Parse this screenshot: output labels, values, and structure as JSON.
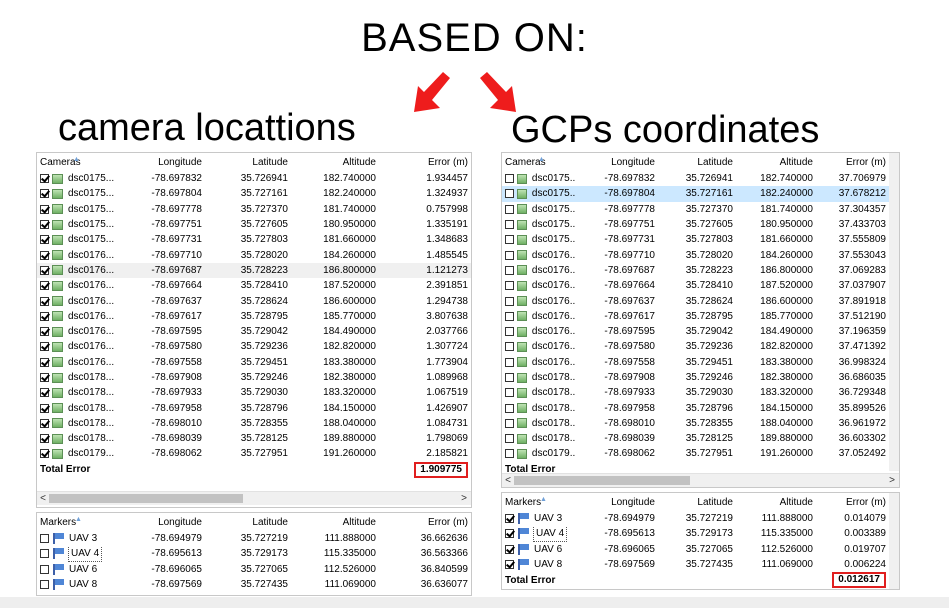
{
  "heading": "BASED ON:",
  "subtitle_left": "camera locattions",
  "subtitle_right": "GCPs coordinates",
  "colors": {
    "arrow": "#ee1c1c",
    "highlight_box": "#e01f1f",
    "selected_row": "#cce8ff"
  },
  "cameras_headers": [
    "Cameras",
    "Longitude",
    "Latitude",
    "Altitude",
    "Error (m)"
  ],
  "markers_headers": [
    "Markers",
    "Longitude",
    "Latitude",
    "Altitude",
    "Error (m)"
  ],
  "total_error_label": "Total Error",
  "left": {
    "cameras": [
      {
        "name": "dsc0175...",
        "lon": "-78.697832",
        "lat": "35.726941",
        "alt": "182.740000",
        "err": "1.934457",
        "checked": true
      },
      {
        "name": "dsc0175...",
        "lon": "-78.697804",
        "lat": "35.727161",
        "alt": "182.240000",
        "err": "1.324937",
        "checked": true
      },
      {
        "name": "dsc0175...",
        "lon": "-78.697778",
        "lat": "35.727370",
        "alt": "181.740000",
        "err": "0.757998",
        "checked": true
      },
      {
        "name": "dsc0175...",
        "lon": "-78.697751",
        "lat": "35.727605",
        "alt": "180.950000",
        "err": "1.335191",
        "checked": true
      },
      {
        "name": "dsc0175...",
        "lon": "-78.697731",
        "lat": "35.727803",
        "alt": "181.660000",
        "err": "1.348683",
        "checked": true
      },
      {
        "name": "dsc0176...",
        "lon": "-78.697710",
        "lat": "35.728020",
        "alt": "184.260000",
        "err": "1.485545",
        "checked": true
      },
      {
        "name": "dsc0176...",
        "lon": "-78.697687",
        "lat": "35.728223",
        "alt": "186.800000",
        "err": "1.121273",
        "checked": true
      },
      {
        "name": "dsc0176...",
        "lon": "-78.697664",
        "lat": "35.728410",
        "alt": "187.520000",
        "err": "2.391851",
        "checked": true
      },
      {
        "name": "dsc0176...",
        "lon": "-78.697637",
        "lat": "35.728624",
        "alt": "186.600000",
        "err": "1.294738",
        "checked": true
      },
      {
        "name": "dsc0176...",
        "lon": "-78.697617",
        "lat": "35.728795",
        "alt": "185.770000",
        "err": "3.807638",
        "checked": true
      },
      {
        "name": "dsc0176...",
        "lon": "-78.697595",
        "lat": "35.729042",
        "alt": "184.490000",
        "err": "2.037766",
        "checked": true
      },
      {
        "name": "dsc0176...",
        "lon": "-78.697580",
        "lat": "35.729236",
        "alt": "182.820000",
        "err": "1.307724",
        "checked": true
      },
      {
        "name": "dsc0176...",
        "lon": "-78.697558",
        "lat": "35.729451",
        "alt": "183.380000",
        "err": "1.773904",
        "checked": true
      },
      {
        "name": "dsc0178...",
        "lon": "-78.697908",
        "lat": "35.729246",
        "alt": "182.380000",
        "err": "1.089968",
        "checked": true
      },
      {
        "name": "dsc0178...",
        "lon": "-78.697933",
        "lat": "35.729030",
        "alt": "183.320000",
        "err": "1.067519",
        "checked": true
      },
      {
        "name": "dsc0178...",
        "lon": "-78.697958",
        "lat": "35.728796",
        "alt": "184.150000",
        "err": "1.426907",
        "checked": true
      },
      {
        "name": "dsc0178...",
        "lon": "-78.698010",
        "lat": "35.728355",
        "alt": "188.040000",
        "err": "1.084731",
        "checked": true
      },
      {
        "name": "dsc0178...",
        "lon": "-78.698039",
        "lat": "35.728125",
        "alt": "189.880000",
        "err": "1.798069",
        "checked": true
      },
      {
        "name": "dsc0179...",
        "lon": "-78.698062",
        "lat": "35.727951",
        "alt": "191.260000",
        "err": "2.185821",
        "checked": true
      }
    ],
    "cameras_total": "1.909775",
    "markers": [
      {
        "name": "UAV 3",
        "lon": "-78.694979",
        "lat": "35.727219",
        "alt": "111.888000",
        "err": "36.662636",
        "checked": false
      },
      {
        "name": "UAV 4",
        "lon": "-78.695613",
        "lat": "35.729173",
        "alt": "115.335000",
        "err": "36.563366",
        "checked": false
      },
      {
        "name": "UAV 6",
        "lon": "-78.696065",
        "lat": "35.727065",
        "alt": "112.526000",
        "err": "36.840599",
        "checked": false
      },
      {
        "name": "UAV 8",
        "lon": "-78.697569",
        "lat": "35.727435",
        "alt": "111.069000",
        "err": "36.636077",
        "checked": false
      }
    ]
  },
  "right": {
    "cameras": [
      {
        "name": "dsc0175...",
        "lon": "-78.697832",
        "lat": "35.726941",
        "alt": "182.740000",
        "err": "37.706979",
        "checked": false
      },
      {
        "name": "dsc0175...",
        "lon": "-78.697804",
        "lat": "35.727161",
        "alt": "182.240000",
        "err": "37.678212",
        "checked": false
      },
      {
        "name": "dsc0175...",
        "lon": "-78.697778",
        "lat": "35.727370",
        "alt": "181.740000",
        "err": "37.304357",
        "checked": false
      },
      {
        "name": "dsc0175...",
        "lon": "-78.697751",
        "lat": "35.727605",
        "alt": "180.950000",
        "err": "37.433703",
        "checked": false
      },
      {
        "name": "dsc0175...",
        "lon": "-78.697731",
        "lat": "35.727803",
        "alt": "181.660000",
        "err": "37.555809",
        "checked": false
      },
      {
        "name": "dsc0176...",
        "lon": "-78.697710",
        "lat": "35.728020",
        "alt": "184.260000",
        "err": "37.553043",
        "checked": false
      },
      {
        "name": "dsc0176...",
        "lon": "-78.697687",
        "lat": "35.728223",
        "alt": "186.800000",
        "err": "37.069283",
        "checked": false
      },
      {
        "name": "dsc0176...",
        "lon": "-78.697664",
        "lat": "35.728410",
        "alt": "187.520000",
        "err": "37.037907",
        "checked": false
      },
      {
        "name": "dsc0176...",
        "lon": "-78.697637",
        "lat": "35.728624",
        "alt": "186.600000",
        "err": "37.891918",
        "checked": false
      },
      {
        "name": "dsc0176...",
        "lon": "-78.697617",
        "lat": "35.728795",
        "alt": "185.770000",
        "err": "37.512190",
        "checked": false
      },
      {
        "name": "dsc0176...",
        "lon": "-78.697595",
        "lat": "35.729042",
        "alt": "184.490000",
        "err": "37.196359",
        "checked": false
      },
      {
        "name": "dsc0176...",
        "lon": "-78.697580",
        "lat": "35.729236",
        "alt": "182.820000",
        "err": "37.471392",
        "checked": false
      },
      {
        "name": "dsc0176...",
        "lon": "-78.697558",
        "lat": "35.729451",
        "alt": "183.380000",
        "err": "36.998324",
        "checked": false
      },
      {
        "name": "dsc0178...",
        "lon": "-78.697908",
        "lat": "35.729246",
        "alt": "182.380000",
        "err": "36.686035",
        "checked": false
      },
      {
        "name": "dsc0178...",
        "lon": "-78.697933",
        "lat": "35.729030",
        "alt": "183.320000",
        "err": "36.729348",
        "checked": false
      },
      {
        "name": "dsc0178...",
        "lon": "-78.697958",
        "lat": "35.728796",
        "alt": "184.150000",
        "err": "35.899526",
        "checked": false
      },
      {
        "name": "dsc0178...",
        "lon": "-78.698010",
        "lat": "35.728355",
        "alt": "188.040000",
        "err": "36.961972",
        "checked": false
      },
      {
        "name": "dsc0178...",
        "lon": "-78.698039",
        "lat": "35.728125",
        "alt": "189.880000",
        "err": "36.603302",
        "checked": false
      },
      {
        "name": "dsc0179...",
        "lon": "-78.698062",
        "lat": "35.727951",
        "alt": "191.260000",
        "err": "37.052492",
        "checked": false
      }
    ],
    "markers": [
      {
        "name": "UAV 3",
        "lon": "-78.694979",
        "lat": "35.727219",
        "alt": "111.888000",
        "err": "0.014079",
        "checked": true
      },
      {
        "name": "UAV 4",
        "lon": "-78.695613",
        "lat": "35.729173",
        "alt": "115.335000",
        "err": "0.003389",
        "checked": true
      },
      {
        "name": "UAV 6",
        "lon": "-78.696065",
        "lat": "35.727065",
        "alt": "112.526000",
        "err": "0.019707",
        "checked": true
      },
      {
        "name": "UAV 8",
        "lon": "-78.697569",
        "lat": "35.727435",
        "alt": "111.069000",
        "err": "0.006224",
        "checked": true
      }
    ],
    "markers_total": "0.012617"
  },
  "scroll_left_arrow": "<",
  "scroll_right_arrow": ">"
}
